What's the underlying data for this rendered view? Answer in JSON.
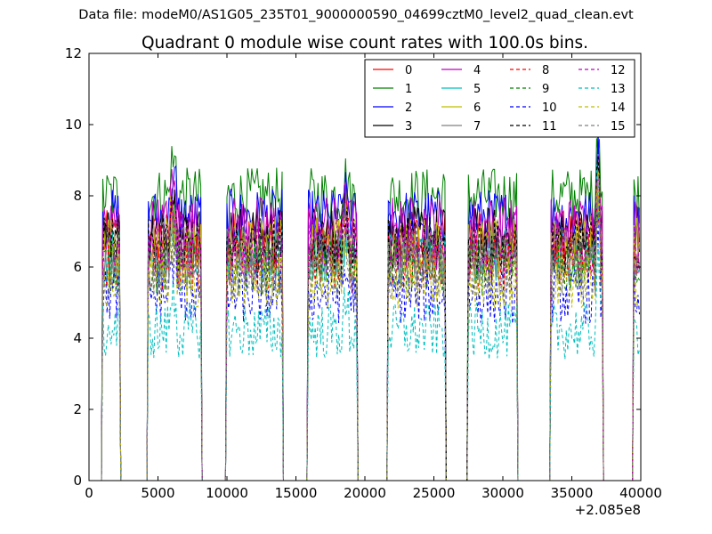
{
  "suptitle": "Data file: modeM0/AS1G05_235T01_9000000590_04699cztM0_level2_quad_clean.evt",
  "chart_data": {
    "type": "line",
    "title": "Quadrant 0 module wise count rates with 100.0s bins.",
    "xlabel": "",
    "ylabel": "",
    "xlim": [
      0,
      40000
    ],
    "ylim": [
      0,
      12
    ],
    "x_offset_label": "+2.085e8",
    "xticks": [
      0,
      5000,
      10000,
      15000,
      20000,
      25000,
      30000,
      35000,
      40000
    ],
    "xtick_labels": [
      "0",
      "5000",
      "10000",
      "15000",
      "20000",
      "25000",
      "30000",
      "35000",
      "40000"
    ],
    "yticks": [
      0,
      2,
      4,
      6,
      8,
      10,
      12
    ],
    "ytick_labels": [
      "0",
      "2",
      "4",
      "6",
      "8",
      "10",
      "12"
    ],
    "grid": false,
    "legend_placement": "top-right",
    "legend_columns": 4,
    "on_intervals": [
      [
        1000,
        2200
      ],
      [
        4300,
        8100
      ],
      [
        10000,
        14000
      ],
      [
        15900,
        19400
      ],
      [
        21700,
        25800
      ],
      [
        27500,
        31000
      ],
      [
        33500,
        37200
      ],
      [
        39500,
        39900
      ]
    ],
    "series": [
      {
        "name": "0",
        "color": "#ff0000",
        "style": "solid",
        "level": 6.8
      },
      {
        "name": "1",
        "color": "#008000",
        "style": "solid",
        "level": 8.0
      },
      {
        "name": "2",
        "color": "#0000ff",
        "style": "solid",
        "level": 7.4
      },
      {
        "name": "3",
        "color": "#000000",
        "style": "solid",
        "level": 6.9
      },
      {
        "name": "4",
        "color": "#bf00bf",
        "style": "solid",
        "level": 7.2
      },
      {
        "name": "5",
        "color": "#00bfbf",
        "style": "solid",
        "level": 6.3
      },
      {
        "name": "6",
        "color": "#bfbf00",
        "style": "solid",
        "level": 6.6
      },
      {
        "name": "7",
        "color": "#808080",
        "style": "solid",
        "level": 6.4
      },
      {
        "name": "8",
        "color": "#ff0000",
        "style": "dashed",
        "level": 6.1
      },
      {
        "name": "9",
        "color": "#008000",
        "style": "dashed",
        "level": 6.0
      },
      {
        "name": "10",
        "color": "#0000ff",
        "style": "dashed",
        "level": 5.2
      },
      {
        "name": "11",
        "color": "#000000",
        "style": "dashed",
        "level": 6.6
      },
      {
        "name": "12",
        "color": "#bf00bf",
        "style": "dashed",
        "level": 6.5
      },
      {
        "name": "13",
        "color": "#00bfbf",
        "style": "dashed",
        "level": 4.2
      },
      {
        "name": "14",
        "color": "#bfbf00",
        "style": "dashed",
        "level": 5.6
      },
      {
        "name": "15",
        "color": "#808080",
        "style": "dashed",
        "level": 5.9
      }
    ]
  }
}
